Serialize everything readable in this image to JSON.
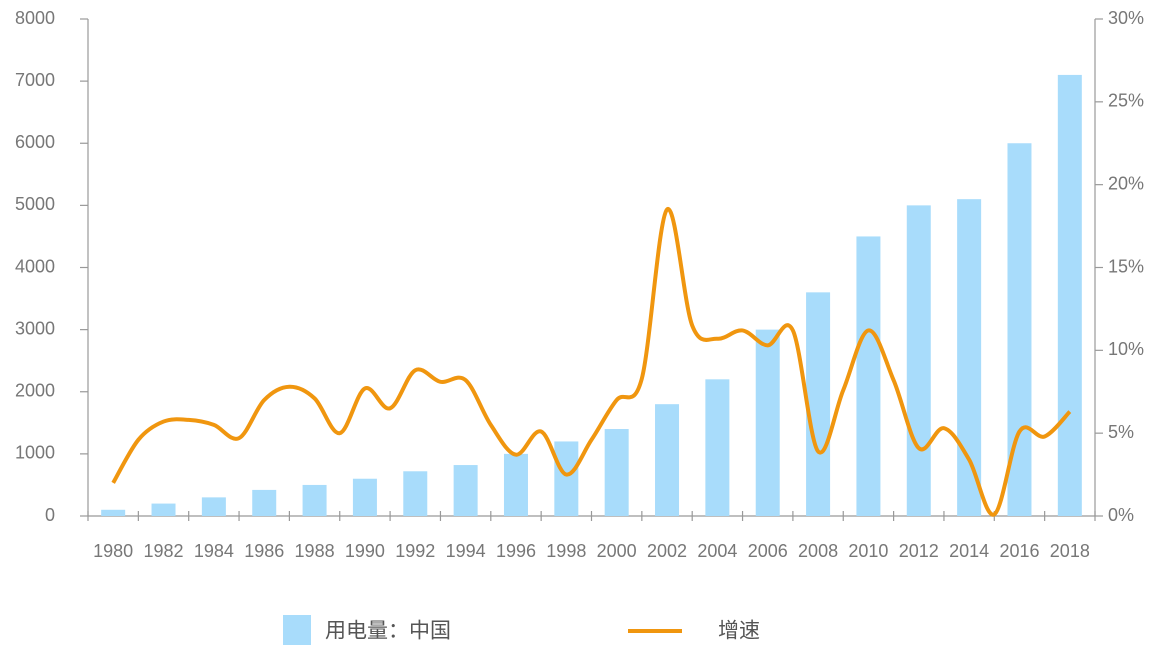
{
  "chart_data": {
    "type": "bar_line",
    "categories": [
      "1980",
      "1982",
      "1984",
      "1986",
      "1988",
      "1990",
      "1992",
      "1994",
      "1996",
      "1998",
      "2000",
      "2002",
      "2004",
      "2006",
      "2008",
      "2010",
      "2012",
      "2014",
      "2016",
      "2018"
    ],
    "series": [
      {
        "name": "用电量：中国",
        "color": "#a8dcfb",
        "type": "bar",
        "values": [
          100,
          200,
          300,
          420,
          500,
          600,
          720,
          820,
          1000,
          1200,
          1400,
          1800,
          2200,
          3000,
          3600,
          4500,
          5000,
          5100,
          6000,
          7100
        ]
      },
      {
        "name": "增速",
        "color": "#f0960f",
        "type": "line",
        "axis": "y2",
        "x": [
          1980,
          1981,
          1982,
          1983,
          1984,
          1985,
          1986,
          1987,
          1988,
          1989,
          1990,
          1991,
          1992,
          1993,
          1994,
          1995,
          1996,
          1997,
          1998,
          1999,
          2000,
          2001,
          2002,
          2003,
          2004,
          2005,
          2006,
          2007,
          2008,
          2009,
          2010,
          2011,
          2012,
          2013,
          2014,
          2015,
          2016,
          2017,
          2018
        ],
        "values": [
          2.0,
          4.6,
          5.7,
          5.8,
          5.5,
          4.7,
          7.0,
          7.8,
          7.1,
          5.0,
          7.7,
          6.5,
          8.8,
          8.1,
          8.2,
          5.5,
          3.7,
          5.1,
          2.5,
          4.6,
          7.0,
          8.3,
          18.5,
          11.5,
          10.7,
          11.2,
          10.3,
          11.2,
          3.9,
          7.6,
          11.2,
          8.2,
          4.1,
          5.3,
          3.4,
          0.1,
          5.1,
          4.8,
          6.3
        ]
      }
    ],
    "ylim": [
      0,
      8000
    ],
    "yticks": [
      0,
      1000,
      2000,
      3000,
      4000,
      5000,
      6000,
      7000,
      8000
    ],
    "y2lim": [
      0,
      30
    ],
    "y2ticks": [
      {
        "value": 0,
        "label": "0%"
      },
      {
        "value": 5,
        "label": "5%"
      },
      {
        "value": 10,
        "label": "10%"
      },
      {
        "value": 15,
        "label": "15%"
      },
      {
        "value": 20,
        "label": "20%"
      },
      {
        "value": 25,
        "label": "25%"
      },
      {
        "value": 30,
        "label": "30%"
      }
    ]
  }
}
